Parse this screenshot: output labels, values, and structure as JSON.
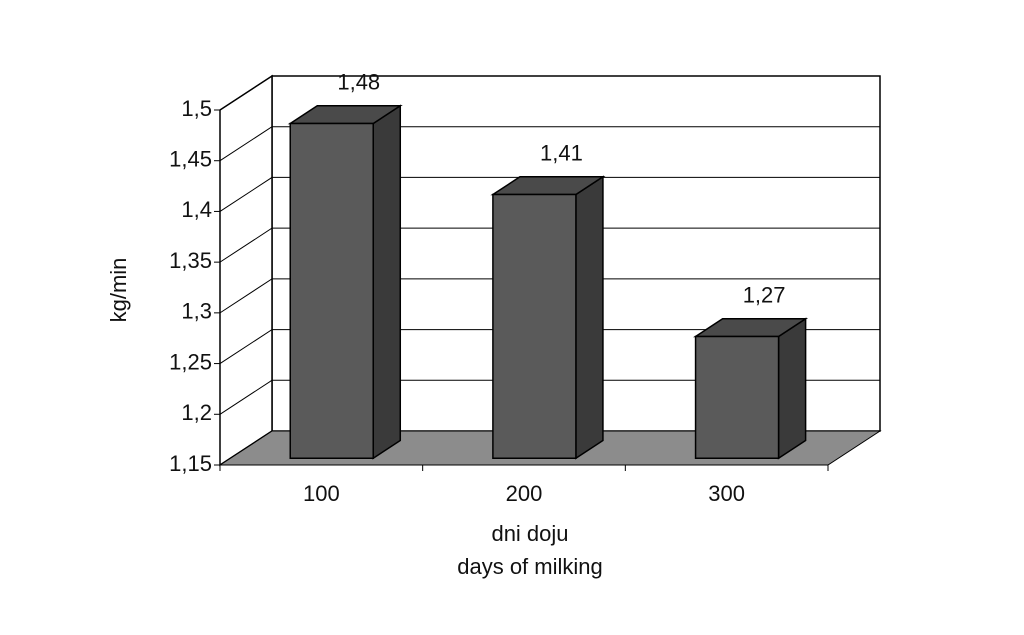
{
  "chart_data": {
    "type": "bar3d",
    "y_label": "kg/min",
    "x_label": [
      "dni doju",
      "days of milking"
    ],
    "categories": [
      "100",
      "200",
      "300"
    ],
    "values": [
      1.48,
      1.41,
      1.27
    ],
    "value_labels": [
      "1,48",
      "1,41",
      "1,27"
    ],
    "color": "#5a5a5a",
    "ylim": [
      1.15,
      1.5
    ],
    "yticks": [
      {
        "value": 1.15,
        "label": "1,15"
      },
      {
        "value": 1.2,
        "label": "1,2"
      },
      {
        "value": 1.25,
        "label": "1,25"
      },
      {
        "value": 1.3,
        "label": "1,3"
      },
      {
        "value": 1.35,
        "label": "1,35"
      },
      {
        "value": 1.4,
        "label": "1,4"
      },
      {
        "value": 1.45,
        "label": "1,45"
      },
      {
        "value": 1.5,
        "label": "1,5"
      }
    ],
    "grid": true
  }
}
